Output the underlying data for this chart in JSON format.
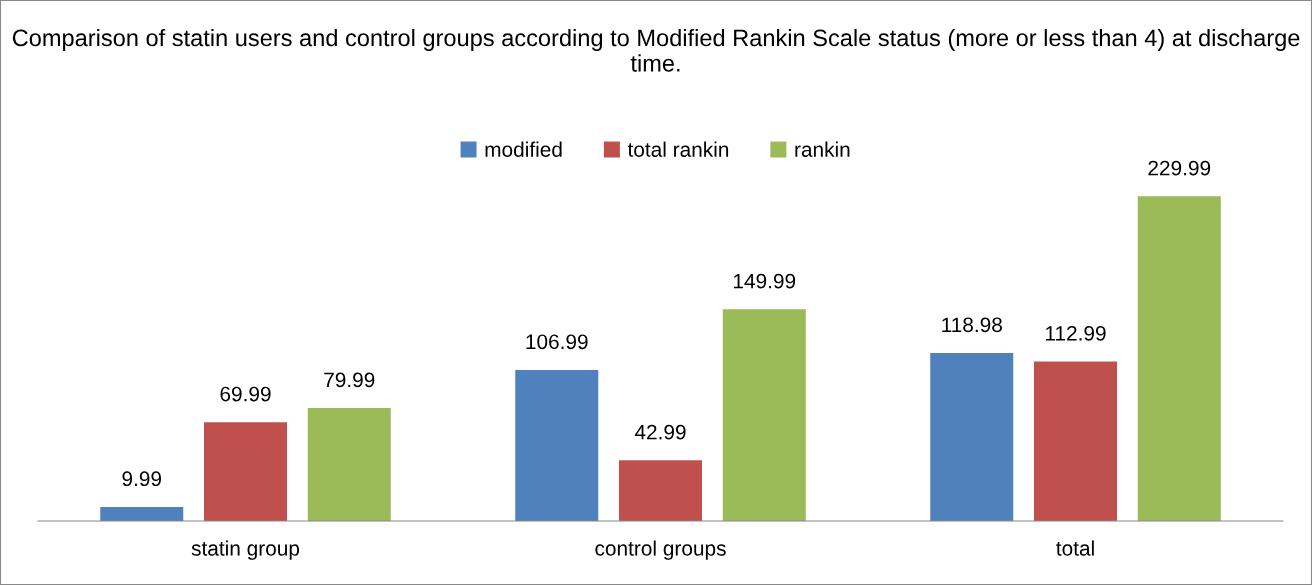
{
  "chart_data": {
    "type": "bar",
    "title": "Comparison of statin users and control groups according to Modified Rankin Scale status (more or less than 4) at discharge time.",
    "categories": [
      "statin group",
      "control groups",
      "total"
    ],
    "series": [
      {
        "name": "modified",
        "color": "#4f81bd",
        "values": [
          9.99,
          106.99,
          118.98
        ]
      },
      {
        "name": "total rankin",
        "color": "#c0504d",
        "values": [
          69.99,
          42.99,
          112.99
        ]
      },
      {
        "name": "rankin",
        "color": "#9bbb59",
        "values": [
          79.99,
          149.99,
          229.99
        ]
      }
    ],
    "data_labels": true,
    "legend": "top",
    "grid": false,
    "tick_labels": "x"
  }
}
